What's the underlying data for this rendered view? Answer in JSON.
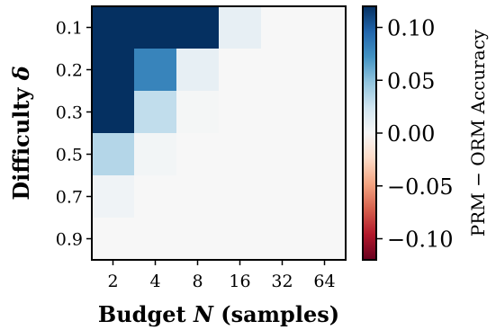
{
  "chart_data": {
    "type": "heatmap",
    "xlabel": "Budget N (samples)",
    "xlabel_parts": {
      "bold_prefix": "Budget ",
      "italic": "N",
      "bold_suffix": " (samples)"
    },
    "ylabel": "Difficulty δ",
    "ylabel_parts": {
      "bold_prefix": "Difficulty ",
      "italic": "δ"
    },
    "x_categories": [
      "2",
      "4",
      "8",
      "16",
      "32",
      "64"
    ],
    "y_categories": [
      "0.1",
      "0.2",
      "0.3",
      "0.5",
      "0.7",
      "0.9"
    ],
    "values": [
      [
        0.12,
        0.12,
        0.12,
        0.01,
        0.0,
        0.0
      ],
      [
        0.12,
        0.08,
        0.01,
        0.0,
        0.0,
        0.0
      ],
      [
        0.12,
        0.03,
        0.002,
        0.0,
        0.0,
        0.0
      ],
      [
        0.035,
        0.003,
        0.0,
        0.0,
        0.0,
        0.0
      ],
      [
        0.005,
        0.0,
        0.0,
        0.0,
        0.0,
        0.0
      ],
      [
        0.0,
        0.0,
        0.0,
        0.0,
        0.0,
        0.0
      ]
    ],
    "colorbar": {
      "label": "PRM − ORM Accuracy",
      "colormap": "RdBu",
      "vmin": -0.12,
      "vmax": 0.12,
      "ticks": [
        0.1,
        0.05,
        0.0,
        -0.05,
        -0.1
      ],
      "tick_labels": [
        "0.10",
        "0.05",
        "0.00",
        "−0.05",
        "−0.10"
      ]
    },
    "grid": false
  }
}
